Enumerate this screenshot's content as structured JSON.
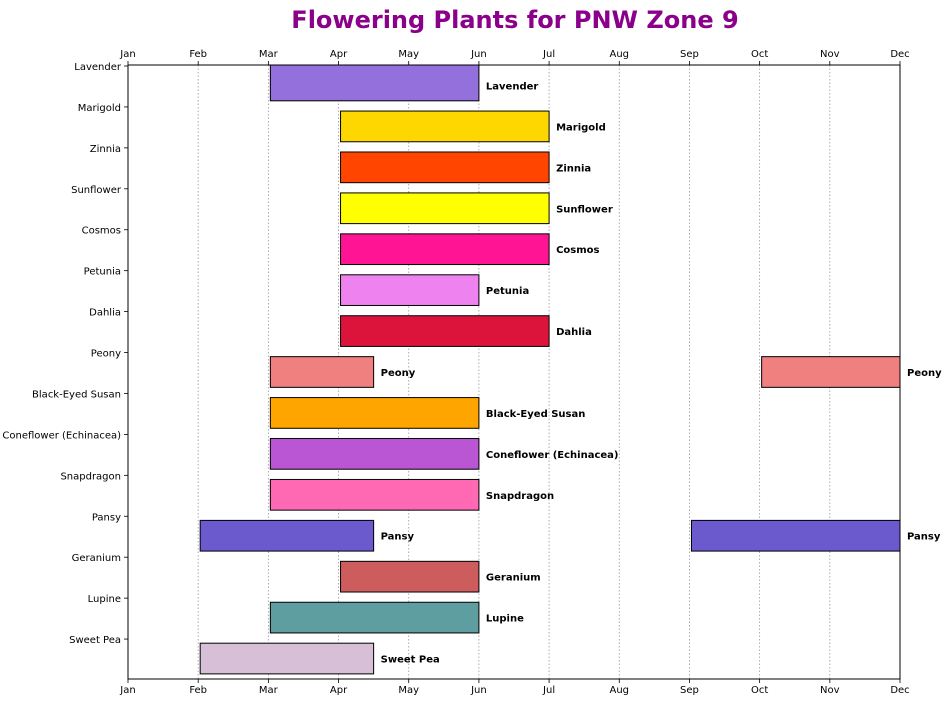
{
  "chart_data": {
    "type": "bar",
    "orientation": "horizontal-gantt",
    "title": "Flowering Plants for PNW Zone 9",
    "title_color": "#8B008B",
    "xlabel": "",
    "ylabel": "",
    "x_ticks": [
      "Jan",
      "Feb",
      "Mar",
      "Apr",
      "May",
      "Jun",
      "Jul",
      "Aug",
      "Sep",
      "Oct",
      "Nov",
      "Dec"
    ],
    "xlim": [
      1,
      12
    ],
    "grid": "vertical dotted",
    "categories": [
      "Lavender",
      "Marigold",
      "Zinnia",
      "Sunflower",
      "Cosmos",
      "Petunia",
      "Dahlia",
      "Peony",
      "Black-Eyed Susan",
      "Coneflower (Echinacea)",
      "Snapdragon",
      "Pansy",
      "Geranium",
      "Lupine",
      "Sweet Pea"
    ],
    "bars": [
      {
        "plant": "Lavender",
        "start": 3,
        "end": 6,
        "color": "#9370DB"
      },
      {
        "plant": "Marigold",
        "start": 4,
        "end": 7,
        "color": "#FFD700"
      },
      {
        "plant": "Zinnia",
        "start": 4,
        "end": 7,
        "color": "#FF4500"
      },
      {
        "plant": "Sunflower",
        "start": 4,
        "end": 7,
        "color": "#FFFF00"
      },
      {
        "plant": "Cosmos",
        "start": 4,
        "end": 7,
        "color": "#FF1493"
      },
      {
        "plant": "Petunia",
        "start": 4,
        "end": 6,
        "color": "#EE82EE"
      },
      {
        "plant": "Dahlia",
        "start": 4,
        "end": 7,
        "color": "#DC143C"
      },
      {
        "plant": "Peony",
        "start": 3,
        "end": 4.5,
        "color": "#F08080"
      },
      {
        "plant": "Peony",
        "start": 10,
        "end": 12,
        "color": "#F08080"
      },
      {
        "plant": "Black-Eyed Susan",
        "start": 3,
        "end": 6,
        "color": "#FFA500"
      },
      {
        "plant": "Coneflower (Echinacea)",
        "start": 3,
        "end": 6,
        "color": "#BA55D3"
      },
      {
        "plant": "Snapdragon",
        "start": 3,
        "end": 6,
        "color": "#FF69B4"
      },
      {
        "plant": "Pansy",
        "start": 2,
        "end": 4.5,
        "color": "#6A5ACD"
      },
      {
        "plant": "Pansy",
        "start": 9,
        "end": 12,
        "color": "#6A5ACD"
      },
      {
        "plant": "Geranium",
        "start": 4,
        "end": 6,
        "color": "#CD5C5C"
      },
      {
        "plant": "Lupine",
        "start": 3,
        "end": 6,
        "color": "#5F9EA0"
      },
      {
        "plant": "Sweet Pea",
        "start": 2,
        "end": 4.5,
        "color": "#D8BFD8"
      }
    ]
  }
}
